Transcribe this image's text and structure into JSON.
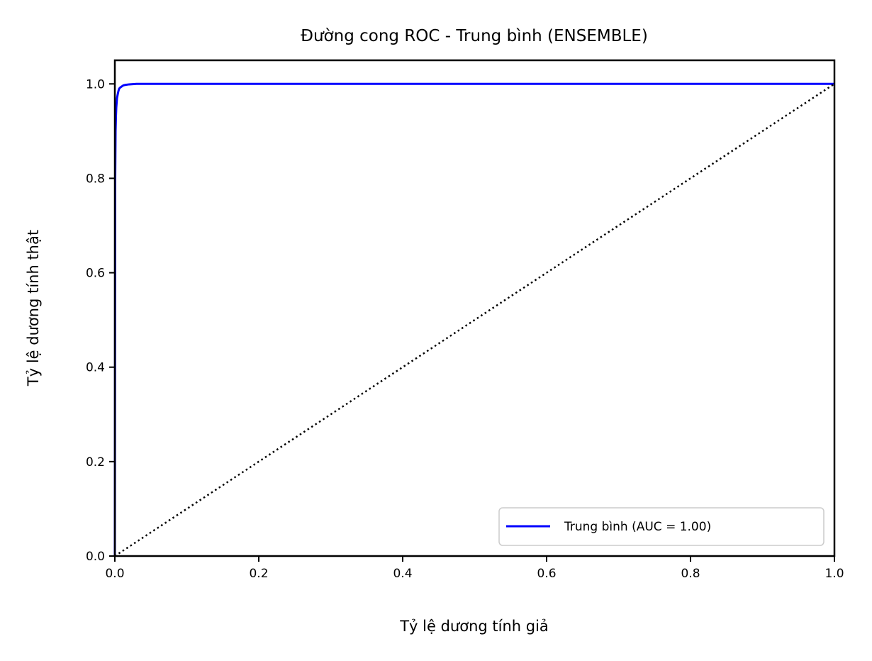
{
  "chart_data": {
    "type": "line",
    "title": "Đường cong ROC - Trung bình (ENSEMBLE)",
    "xlabel": "Tỷ lệ dương tính giả",
    "ylabel": "Tỷ lệ dương tính thật",
    "xlim": [
      0.0,
      1.0
    ],
    "ylim": [
      0.0,
      1.05
    ],
    "x_ticks": [
      "0.0",
      "0.2",
      "0.4",
      "0.6",
      "0.8",
      "1.0"
    ],
    "y_ticks": [
      "0.0",
      "0.2",
      "0.4",
      "0.6",
      "0.8",
      "1.0"
    ],
    "grid": false,
    "legend_position": "lower-right",
    "series": [
      {
        "name": "Trung bình (AUC = 1.00)",
        "color": "#0000ff",
        "style": "solid",
        "x": [
          0.0,
          0.0005,
          0.001,
          0.0015,
          0.002,
          0.003,
          0.004,
          0.005,
          0.006,
          0.008,
          0.01,
          0.012,
          0.015,
          0.02,
          0.025,
          0.03,
          0.05,
          0.1,
          0.2,
          0.4,
          0.6,
          0.8,
          1.0
        ],
        "y": [
          0.0,
          0.8,
          0.9,
          0.93,
          0.95,
          0.97,
          0.978,
          0.985,
          0.99,
          0.993,
          0.995,
          0.997,
          0.998,
          0.999,
          0.9995,
          1.0,
          1.0,
          1.0,
          1.0,
          1.0,
          1.0,
          1.0,
          1.0
        ]
      },
      {
        "name": "",
        "color": "#000000",
        "style": "dotted",
        "x": [
          0.0,
          1.0
        ],
        "y": [
          0.0,
          1.0
        ]
      }
    ]
  }
}
